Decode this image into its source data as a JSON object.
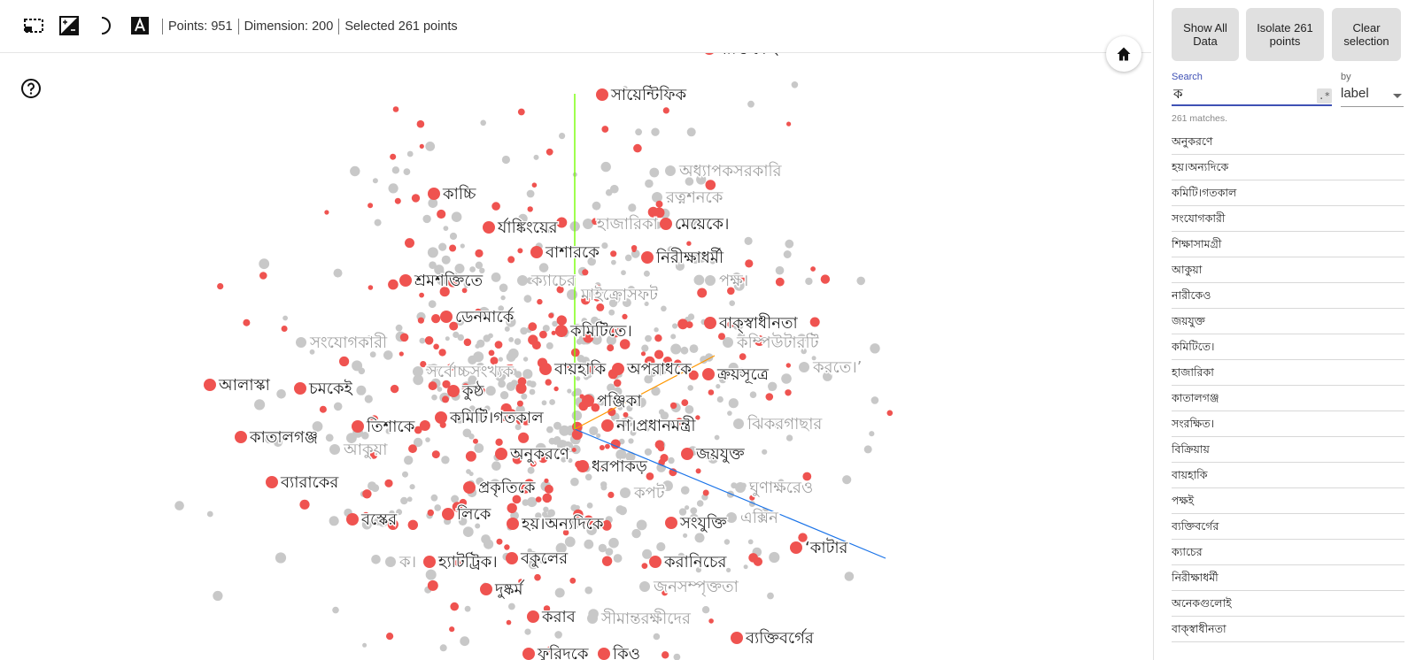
{
  "toolbar": {
    "icons": [
      "box-select-icon",
      "night-mode-icon",
      "contrast-moon-icon",
      "label-font-icon"
    ],
    "points_text": "Points: 951",
    "dimension_text": "Dimension: 200",
    "selected_text": "Selected 261 points"
  },
  "buttons": {
    "show_all": "Show All Data",
    "isolate": "Isolate 261 points",
    "clear": "Clear selection"
  },
  "search": {
    "label": "Search",
    "value": "ক",
    "regex_label": ".*",
    "by_label": "by",
    "by_value": "label",
    "matches": "261 matches."
  },
  "results": [
    "অনুকরণে",
    "হয়।অন্যদিকে",
    "কমিটি।গতকাল",
    "সংযোগকারী",
    "শিক্ষাসামগ্রী",
    "আকুয়া",
    "নারীকেও",
    "জয়যুক্ত",
    "কমিটিতে।",
    "হাজারিকা",
    "কাতালগঞ্জ",
    "সংরক্ষিত।",
    "বিক্রিয়ায়",
    "বায়হাকি",
    "পক্ষই",
    "ব্যক্তিবর্গের",
    "ক্যাচের",
    "নিরীক্ষাধর্মী",
    "অনেকগুলোই",
    "বাক্‌স্বাধীনতা"
  ],
  "colors": {
    "selected_point": "#ef5350",
    "unselected_point": "#c8c8c8",
    "axis_x": "#1a73e8",
    "axis_y": "#76ff03",
    "axis_z": "#ff9800",
    "accent": "#3f51b5"
  },
  "projection_labels": [
    {
      "text": "ব্যক্তিকেই",
      "selected": true
    },
    {
      "text": "সায়েন্টিফিক",
      "selected": true
    },
    {
      "text": "অধ্যাপকসরকারি",
      "selected": false
    },
    {
      "text": "রত্নশনকে",
      "selected": false
    },
    {
      "text": "কাচ্চি",
      "selected": true
    },
    {
      "text": "র্যাঙ্কিংয়ের",
      "selected": true
    },
    {
      "text": "হাজারিকা",
      "selected": false
    },
    {
      "text": "মেয়েকে।",
      "selected": true
    },
    {
      "text": "বাশারকে",
      "selected": true
    },
    {
      "text": "নিরীক্ষাধর্মী",
      "selected": true
    },
    {
      "text": "শ্রমশক্তিতে",
      "selected": true
    },
    {
      "text": "ক্যাচের",
      "selected": false
    },
    {
      "text": "পক্ষ।",
      "selected": false
    },
    {
      "text": "মাইক্রোসফট",
      "selected": false
    },
    {
      "text": "ডেনমার্কে",
      "selected": true
    },
    {
      "text": "বাক্‌স্বাধীনতা",
      "selected": true
    },
    {
      "text": "কমিটিতে।",
      "selected": true
    },
    {
      "text": "সংযোগকারী",
      "selected": false
    },
    {
      "text": "কম্পিউটারটি",
      "selected": false
    },
    {
      "text": "করতে।’",
      "selected": false
    },
    {
      "text": "সর্বোচ্চসংখ্যক",
      "selected": false
    },
    {
      "text": "বায়হাকি",
      "selected": true
    },
    {
      "text": "অপরাধকে",
      "selected": true
    },
    {
      "text": "ক্রয়সূত্রে",
      "selected": true
    },
    {
      "text": "আলাস্কা",
      "selected": true
    },
    {
      "text": "চমকেই",
      "selected": true
    },
    {
      "text": "কুষ্ঠ",
      "selected": true
    },
    {
      "text": "পঞ্জিকা",
      "selected": true
    },
    {
      "text": "তিশাকে",
      "selected": true
    },
    {
      "text": "কমিটি।গতকাল",
      "selected": true
    },
    {
      "text": "না।প্রধানমন্ত্রী",
      "selected": true
    },
    {
      "text": "ঝিকরগাছার",
      "selected": false
    },
    {
      "text": "কাতালগঞ্জ",
      "selected": true
    },
    {
      "text": "আকুয়া",
      "selected": false
    },
    {
      "text": "অনুকরণে",
      "selected": true
    },
    {
      "text": "জয়যুক্ত",
      "selected": true
    },
    {
      "text": "ধরপাকড়",
      "selected": true
    },
    {
      "text": "ব্যারাকের",
      "selected": true
    },
    {
      "text": "প্রকৃতিকে",
      "selected": true
    },
    {
      "text": "কপট",
      "selected": false
    },
    {
      "text": "ঘুণাক্ষরেও",
      "selected": false
    },
    {
      "text": "বস্কের",
      "selected": true
    },
    {
      "text": "লিকে",
      "selected": true
    },
    {
      "text": "হয়।অন্যদিকে",
      "selected": true
    },
    {
      "text": "সংযুক্তি",
      "selected": true
    },
    {
      "text": "এক্সিন",
      "selected": false
    },
    {
      "text": "‘কাটার",
      "selected": true
    },
    {
      "text": "ক।",
      "selected": false
    },
    {
      "text": "হ্যাটট্রিক।",
      "selected": true
    },
    {
      "text": "বকুলের",
      "selected": true
    },
    {
      "text": "করানিচের",
      "selected": true
    },
    {
      "text": "দুষ্কর্ম",
      "selected": true
    },
    {
      "text": "জনসম্পৃক্ততা",
      "selected": false
    },
    {
      "text": "করাব",
      "selected": true
    },
    {
      "text": "সীমান্তরক্ষীদের",
      "selected": false
    },
    {
      "text": "ব্যক্তিবর্গের",
      "selected": true
    },
    {
      "text": "ফুরিদকে",
      "selected": true
    },
    {
      "text": "কিও",
      "selected": true
    }
  ]
}
